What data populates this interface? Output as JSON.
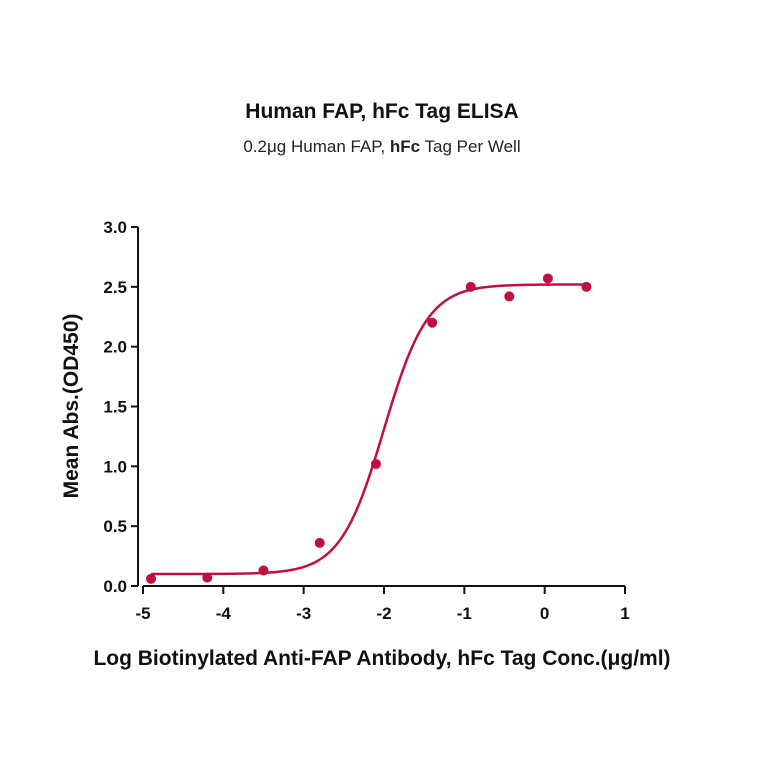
{
  "chart_data": {
    "type": "scatter",
    "title": "Human FAP, hFc Tag ELISA",
    "subtitle": {
      "prefix": "0.2μg Human FAP, ",
      "bold": "hFc",
      "suffix": " Tag Per Well"
    },
    "xlabel": "Log Biotinylated Anti-FAP Antibody, hFc Tag Conc.(μg/ml)",
    "ylabel": "Mean Abs.(OD450)",
    "xlim": [
      -5,
      1
    ],
    "ylim": [
      0,
      3.0
    ],
    "xticks": [
      -5,
      -4,
      -3,
      -2,
      -1,
      0,
      1
    ],
    "yticks": [
      0.0,
      0.5,
      1.0,
      1.5,
      2.0,
      2.5,
      3.0
    ],
    "xtick_labels": [
      "-5",
      "-4",
      "-3",
      "-2",
      "-1",
      "0",
      "1"
    ],
    "ytick_labels": [
      "0.0",
      "0.5",
      "1.0",
      "1.5",
      "2.0",
      "2.5",
      "3.0"
    ],
    "grid": false,
    "legend": "none",
    "color": "#C0103F",
    "points": {
      "x": [
        -4.9,
        -4.2,
        -3.5,
        -2.8,
        -2.1,
        -1.4,
        -0.92,
        -0.44,
        0.04,
        0.52
      ],
      "y": [
        0.06,
        0.07,
        0.13,
        0.36,
        1.02,
        2.2,
        2.5,
        2.42,
        2.57,
        2.5
      ]
    },
    "fit_curve": {
      "model": "4PL",
      "bottom": 0.1,
      "top": 2.52,
      "log_ec50": -2.0,
      "hill_slope": 1.6,
      "x_range": [
        -4.9,
        0.52
      ]
    }
  }
}
